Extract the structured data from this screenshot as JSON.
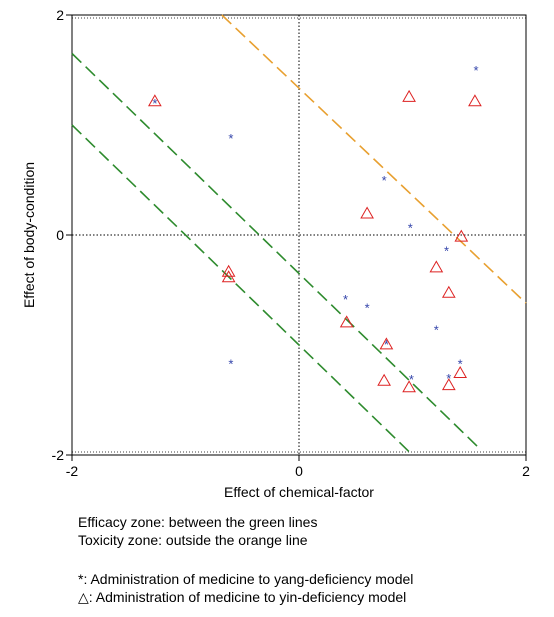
{
  "chart_data": {
    "type": "scatter",
    "xlabel": "Effect of chemical-factor",
    "ylabel": "Effect of body-condition",
    "xlim": [
      -2,
      2
    ],
    "ylim": [
      -2,
      2
    ],
    "x_ticks": [
      "-2",
      "0",
      "2"
    ],
    "y_ticks": [
      "2",
      "0",
      "-2"
    ],
    "reference_lines": {
      "x": 0,
      "y": 0,
      "style": "dotted"
    },
    "series": [
      {
        "marker": "asterisk",
        "color": "#3344aa",
        "points": [
          {
            "x": -1.27,
            "y": 1.2
          },
          {
            "x": -0.6,
            "y": 0.88
          },
          {
            "x": 1.56,
            "y": 1.5
          },
          {
            "x": 0.75,
            "y": 0.5
          },
          {
            "x": 0.98,
            "y": 0.07
          },
          {
            "x": 1.3,
            "y": -0.14
          },
          {
            "x": 0.41,
            "y": -0.58
          },
          {
            "x": 0.6,
            "y": -0.66
          },
          {
            "x": 1.21,
            "y": -0.86
          },
          {
            "x": 0.77,
            "y": -0.99
          },
          {
            "x": -0.6,
            "y": -1.17
          },
          {
            "x": 1.42,
            "y": -1.17
          },
          {
            "x": 1.32,
            "y": -1.3
          },
          {
            "x": 0.99,
            "y": -1.31
          }
        ]
      },
      {
        "marker": "triangle",
        "color": "#dd2222",
        "points": [
          {
            "x": -1.27,
            "y": 1.22
          },
          {
            "x": 0.97,
            "y": 1.26
          },
          {
            "x": 1.55,
            "y": 1.22
          },
          {
            "x": 0.6,
            "y": 0.2
          },
          {
            "x": 1.43,
            "y": -0.01
          },
          {
            "x": -0.62,
            "y": -0.33
          },
          {
            "x": -0.62,
            "y": -0.38
          },
          {
            "x": 1.21,
            "y": -0.29
          },
          {
            "x": 1.32,
            "y": -0.52
          },
          {
            "x": 0.42,
            "y": -0.79
          },
          {
            "x": 0.77,
            "y": -0.99
          },
          {
            "x": 0.75,
            "y": -1.32
          },
          {
            "x": 0.97,
            "y": -1.38
          },
          {
            "x": 1.32,
            "y": -1.36
          },
          {
            "x": 1.42,
            "y": -1.25
          }
        ]
      }
    ],
    "lines": [
      {
        "color": "#e8a030",
        "from": [
          -0.68,
          2.0
        ],
        "to": [
          2.0,
          -0.62
        ]
      },
      {
        "color": "#2e8b2e",
        "from": [
          -2.0,
          1.65
        ],
        "to": [
          1.6,
          -1.95
        ]
      },
      {
        "color": "#2e8b2e",
        "from": [
          -2.0,
          1.0
        ],
        "to": [
          1.0,
          -2.0
        ]
      }
    ]
  },
  "notes": [
    "Efficacy zone: between the green lines",
    "Toxicity zone: outside the orange line"
  ],
  "legend": [
    {
      "symbol": "*",
      "text": ": Administration of medicine to yang-deficiency model"
    },
    {
      "symbol": "△",
      "text": ": Administration of medicine to yin-deficiency model"
    }
  ]
}
